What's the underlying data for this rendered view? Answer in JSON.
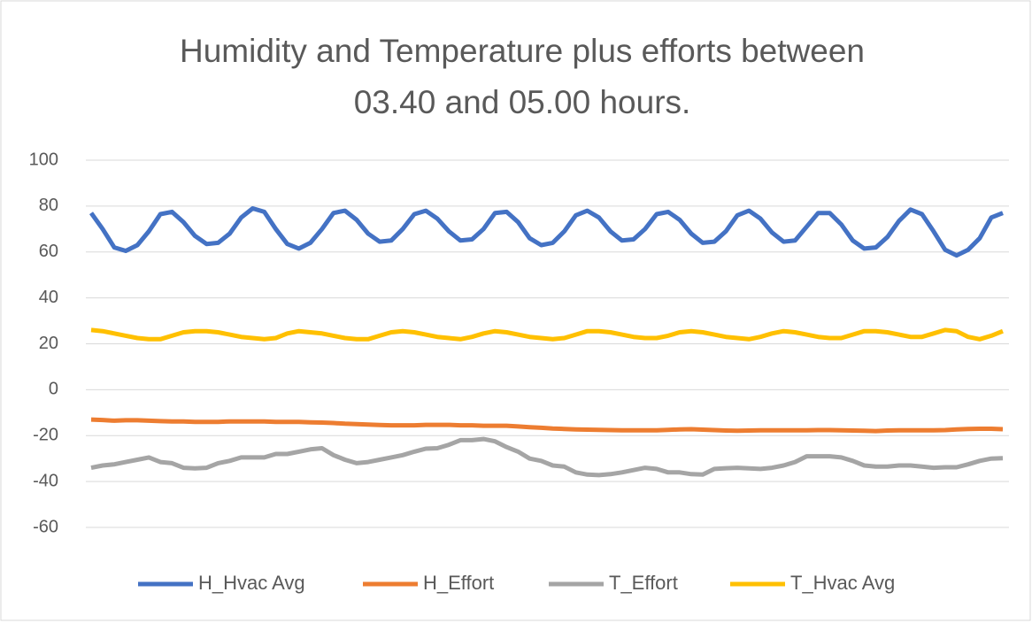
{
  "chart_data": {
    "type": "line",
    "title": [
      "Humidity and Temperature plus efforts between",
      "03.40 and 05.00 hours."
    ],
    "ylim": [
      -60,
      100
    ],
    "yticks": [
      -60,
      -40,
      -20,
      0,
      20,
      40,
      60,
      80,
      100
    ],
    "grid": true,
    "legend": "bottom",
    "series": [
      {
        "name": "H_Hvac Avg",
        "color": "#4472c4",
        "values": [
          77,
          70,
          62,
          60.5,
          63,
          69,
          76.5,
          77.5,
          73,
          67,
          63.5,
          64,
          68,
          75,
          79,
          77.5,
          70,
          63.5,
          61.5,
          64,
          70,
          77,
          78,
          74,
          68,
          64.5,
          65,
          70,
          76.5,
          78,
          74.5,
          69,
          65,
          65.5,
          70,
          77,
          77.5,
          73,
          66,
          63,
          64,
          69,
          76,
          78,
          75,
          69,
          65,
          65.5,
          70,
          76.5,
          77.5,
          74,
          68,
          64,
          64.5,
          69,
          76,
          78,
          74.5,
          68.5,
          64.5,
          65,
          71,
          77,
          77,
          72,
          65,
          61.5,
          62,
          66.5,
          73.5,
          78.5,
          76.5,
          69,
          61,
          58.5,
          61,
          66,
          75,
          77
        ]
      },
      {
        "name": "H_Effort",
        "color": "#ed7d31",
        "values": [
          -13,
          -13.2,
          -13.5,
          -13.3,
          -13.3,
          -13.5,
          -13.7,
          -13.8,
          -13.8,
          -14,
          -14,
          -14,
          -13.8,
          -13.8,
          -13.8,
          -13.8,
          -14,
          -14,
          -14,
          -14.2,
          -14.3,
          -14.5,
          -14.8,
          -15,
          -15.2,
          -15.4,
          -15.5,
          -15.5,
          -15.5,
          -15.3,
          -15.3,
          -15.3,
          -15.5,
          -15.5,
          -15.7,
          -15.7,
          -15.7,
          -16,
          -16.3,
          -16.6,
          -16.9,
          -17.1,
          -17.3,
          -17.4,
          -17.5,
          -17.6,
          -17.7,
          -17.7,
          -17.7,
          -17.7,
          -17.5,
          -17.3,
          -17.2,
          -17.4,
          -17.6,
          -17.8,
          -17.9,
          -17.8,
          -17.7,
          -17.7,
          -17.7,
          -17.7,
          -17.7,
          -17.6,
          -17.6,
          -17.7,
          -17.8,
          -17.9,
          -18,
          -17.8,
          -17.7,
          -17.7,
          -17.7,
          -17.7,
          -17.6,
          -17.3,
          -17.1,
          -17,
          -17,
          -17.2
        ]
      },
      {
        "name": "T_Effort",
        "color": "#a5a5a5",
        "values": [
          -34,
          -33,
          -32.5,
          -31.5,
          -30.5,
          -29.5,
          -31.5,
          -32,
          -34,
          -34.3,
          -34,
          -32,
          -31,
          -29.5,
          -29.5,
          -29.5,
          -28,
          -28,
          -27,
          -26,
          -25.5,
          -28.5,
          -30.5,
          -32,
          -31.5,
          -30.5,
          -29.5,
          -28.5,
          -27,
          -25.7,
          -25.5,
          -24,
          -22,
          -22,
          -21.5,
          -22.5,
          -25,
          -27,
          -30,
          -31,
          -33,
          -33.5,
          -36,
          -37,
          -37.2,
          -36.8,
          -36,
          -35,
          -34,
          -34.5,
          -36,
          -36,
          -36.8,
          -37,
          -34.5,
          -34.2,
          -34,
          -34.3,
          -34.5,
          -34,
          -33,
          -31.5,
          -29,
          -29,
          -29,
          -29.5,
          -31,
          -33,
          -33.5,
          -33.5,
          -33,
          -33,
          -33.5,
          -34,
          -33.8,
          -33.8,
          -32.5,
          -31,
          -30,
          -29.8
        ]
      },
      {
        "name": "T_Hvac Avg",
        "color": "#ffc000",
        "values": [
          26,
          25.5,
          24.5,
          23.5,
          22.5,
          22,
          22,
          23.5,
          25,
          25.5,
          25.5,
          25,
          24,
          23,
          22.5,
          22,
          22.5,
          24.5,
          25.5,
          25,
          24.5,
          23.5,
          22.5,
          22,
          22,
          23.5,
          25,
          25.5,
          25,
          24,
          23,
          22.5,
          22,
          23,
          24.5,
          25.5,
          25,
          24,
          23,
          22.5,
          22,
          22.5,
          24,
          25.5,
          25.5,
          25,
          24,
          23,
          22.5,
          22.5,
          23.5,
          25,
          25.5,
          25,
          24,
          23,
          22.5,
          22,
          23,
          24.5,
          25.5,
          25,
          24,
          23,
          22.5,
          22.5,
          24,
          25.5,
          25.5,
          25,
          24,
          23,
          23,
          24.5,
          26,
          25.5,
          23,
          22,
          23.5,
          25.5
        ]
      }
    ]
  }
}
